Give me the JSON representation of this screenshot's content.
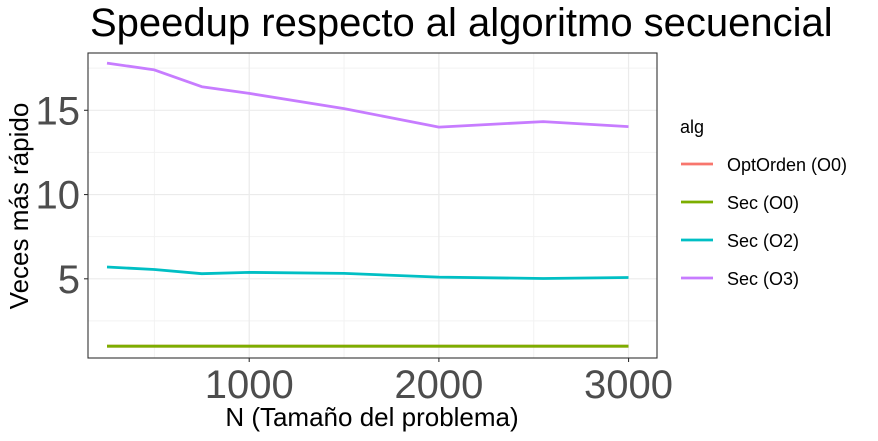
{
  "chart_data": {
    "type": "line",
    "title": "Speedup respecto al algoritmo secuencial",
    "xlabel": "N (Tamaño del problema)",
    "ylabel": "Veces más rápido",
    "xlim": [
      150,
      3150
    ],
    "ylim": [
      0.3,
      18.4
    ],
    "xticks": [
      1000,
      2000,
      3000
    ],
    "xtick_labels": [
      "1000",
      "2000",
      "3000"
    ],
    "yticks": [
      5,
      10,
      15
    ],
    "ytick_labels": [
      "5",
      "10",
      "15"
    ],
    "grid": true,
    "legend": {
      "title": "alg",
      "position": "right"
    },
    "x": [
      250,
      500,
      750,
      1000,
      1500,
      2000,
      2550,
      3000
    ],
    "series": [
      {
        "name": "OptOrden (O0)",
        "color": "#F8766D",
        "values": [
          1.0,
          1.0,
          1.0,
          1.0,
          1.0,
          1.0,
          1.0,
          1.0
        ]
      },
      {
        "name": "Sec (O0)",
        "color": "#7CAE00",
        "values": [
          1.0,
          1.0,
          1.0,
          1.0,
          1.0,
          1.0,
          1.0,
          1.0
        ]
      },
      {
        "name": "Sec (O2)",
        "color": "#00BFC4",
        "values": [
          5.7,
          5.55,
          5.3,
          5.38,
          5.32,
          5.1,
          5.02,
          5.08
        ]
      },
      {
        "name": "Sec (O3)",
        "color": "#C77CFF",
        "values": [
          17.8,
          17.4,
          16.4,
          16.0,
          15.1,
          14.0,
          14.33,
          14.03
        ]
      }
    ]
  }
}
